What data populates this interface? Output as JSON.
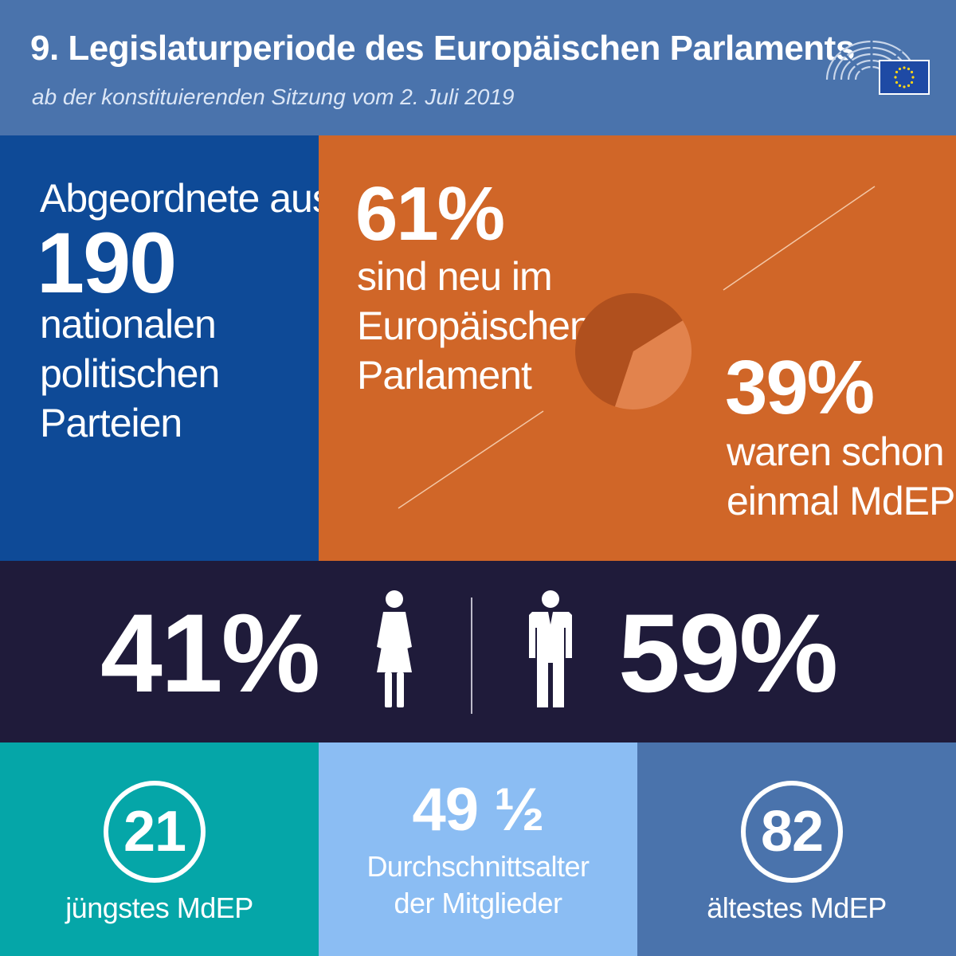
{
  "header": {
    "title": "9. Legislaturperiode des Europäischen Parlaments",
    "subtitle": "ab der konstituierenden Sitzung vom 2. Juli 2019"
  },
  "parties": {
    "intro": "Abgeordnete aus",
    "count": "190",
    "line1": "nationalen",
    "line2": "politischen",
    "line3": "Parteien"
  },
  "members_new": {
    "percent": "61%",
    "line1": "sind neu im",
    "line2": "Europäischen",
    "line3": "Parlament",
    "share": 0.61
  },
  "members_returning": {
    "percent": "39%",
    "line1": "waren schon",
    "line2": "einmal MdEP",
    "share": 0.39
  },
  "gender": {
    "women_percent": "41%",
    "men_percent": "59%"
  },
  "age": {
    "youngest": "21",
    "youngest_label": "jüngstes MdEP",
    "average": "49 ½",
    "average_label_line1": "Durchschnittsalter",
    "average_label_line2": "der Mitglieder",
    "oldest": "82",
    "oldest_label": "ältestes MdEP"
  },
  "colors": {
    "header": "#4a73ac",
    "blue": "#0e4a97",
    "orange": "#d06628",
    "dark": "#1f1b3a",
    "teal": "#05a6a8",
    "light_blue": "#8bbdf3",
    "pie_new": "#b0501e",
    "pie_returning": "#e2834d"
  },
  "icons": {
    "logo": "european-parliament-logo",
    "woman": "woman-icon",
    "man": "man-icon"
  }
}
